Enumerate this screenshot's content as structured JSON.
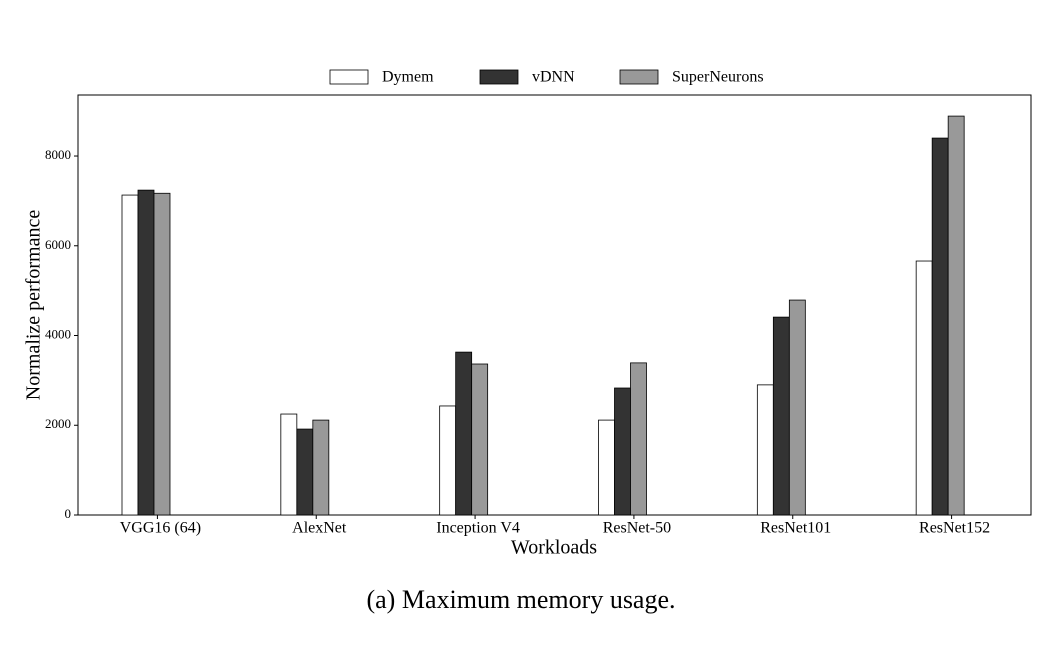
{
  "chart_data": {
    "type": "bar",
    "caption": "(a) Maximum memory usage.",
    "x_label": "Workloads",
    "y_label": "Normalize performance",
    "categories": [
      "VGG16 (64)",
      "AlexNet",
      "Inception V4",
      "ResNet-50",
      "ResNet101",
      "ResNet152"
    ],
    "series": [
      {
        "name": "Dymem",
        "color": "#ffffff",
        "values": [
          7130,
          2250,
          2430,
          2115,
          2900,
          5660
        ]
      },
      {
        "name": "vDNN",
        "color": "#333333",
        "values": [
          7240,
          1915,
          3630,
          2830,
          4410,
          8400
        ]
      },
      {
        "name": "SuperNeurons",
        "color": "#999999",
        "values": [
          7170,
          2115,
          3365,
          3390,
          4790,
          8890
        ]
      }
    ],
    "ylim": [
      0,
      9360
    ],
    "yticks": [
      0,
      2000,
      4000,
      6000,
      8000
    ],
    "legend": "top"
  }
}
